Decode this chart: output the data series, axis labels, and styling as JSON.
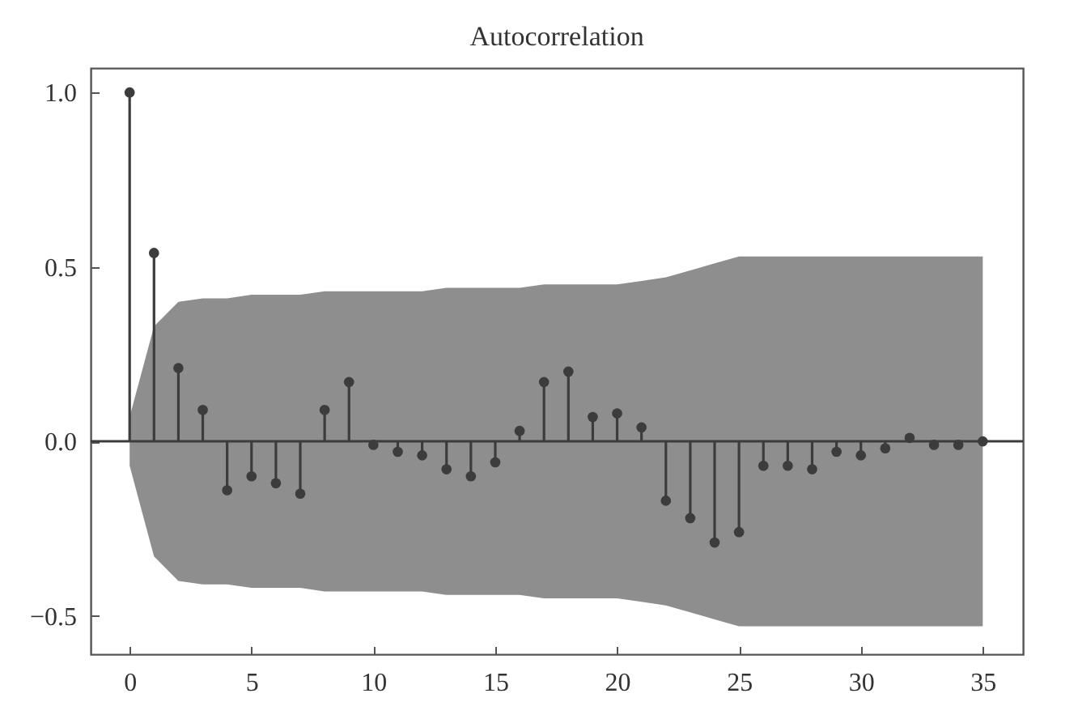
{
  "chart_data": {
    "type": "lollipop",
    "title": "Autocorrelation",
    "x": [
      0,
      1,
      2,
      3,
      4,
      5,
      6,
      7,
      8,
      9,
      10,
      11,
      12,
      13,
      14,
      15,
      16,
      17,
      18,
      19,
      20,
      21,
      22,
      23,
      24,
      25,
      26,
      27,
      28,
      29,
      30,
      31,
      32,
      33,
      34,
      35
    ],
    "series": [
      {
        "color": "#3c3c3c",
        "values": [
          1.0,
          0.54,
          0.21,
          0.09,
          -0.14,
          -0.1,
          -0.12,
          -0.15,
          0.09,
          0.17,
          -0.01,
          -0.03,
          -0.04,
          -0.08,
          -0.1,
          -0.06,
          0.03,
          0.17,
          0.2,
          0.07,
          0.08,
          0.04,
          -0.17,
          -0.22,
          -0.29,
          -0.26,
          -0.07,
          -0.07,
          -0.08,
          -0.03,
          -0.04,
          -0.02,
          0.01,
          -0.01,
          -0.01,
          0.0
        ],
        "upper": [
          0.07,
          0.33,
          0.4,
          0.41,
          0.41,
          0.42,
          0.42,
          0.42,
          0.43,
          0.43,
          0.43,
          0.43,
          0.43,
          0.44,
          0.44,
          0.44,
          0.44,
          0.45,
          0.45,
          0.45,
          0.45,
          0.46,
          0.47,
          0.49,
          0.51,
          0.53,
          0.53,
          0.53,
          0.53,
          0.53,
          0.53,
          0.53,
          0.53,
          0.53,
          0.53,
          0.53
        ],
        "lower": [
          -0.07,
          -0.33,
          -0.4,
          -0.41,
          -0.41,
          -0.42,
          -0.42,
          -0.42,
          -0.43,
          -0.43,
          -0.43,
          -0.43,
          -0.43,
          -0.44,
          -0.44,
          -0.44,
          -0.44,
          -0.45,
          -0.45,
          -0.45,
          -0.45,
          -0.46,
          -0.47,
          -0.49,
          -0.51,
          -0.53,
          -0.53,
          -0.53,
          -0.53,
          -0.53,
          -0.53,
          -0.53,
          -0.53,
          -0.53,
          -0.53,
          -0.53
        ]
      }
    ],
    "xlim": [
      -1.6,
      36.65
    ],
    "ylim": [
      -0.61,
      1.07
    ],
    "xticks": [
      0,
      5,
      10,
      15,
      20,
      25,
      30,
      35
    ],
    "yticks": [
      {
        "value": -0.5,
        "label": "−0.5"
      },
      {
        "value": 0,
        "label": "0.0"
      },
      {
        "value": 0.5,
        "label": "0.5"
      },
      {
        "value": 1,
        "label": "1.0"
      }
    ],
    "ref_lines": [
      {
        "axis": "y",
        "value": 0,
        "color": "#3c3c3c"
      }
    ],
    "marker": "circle",
    "grid": false
  }
}
